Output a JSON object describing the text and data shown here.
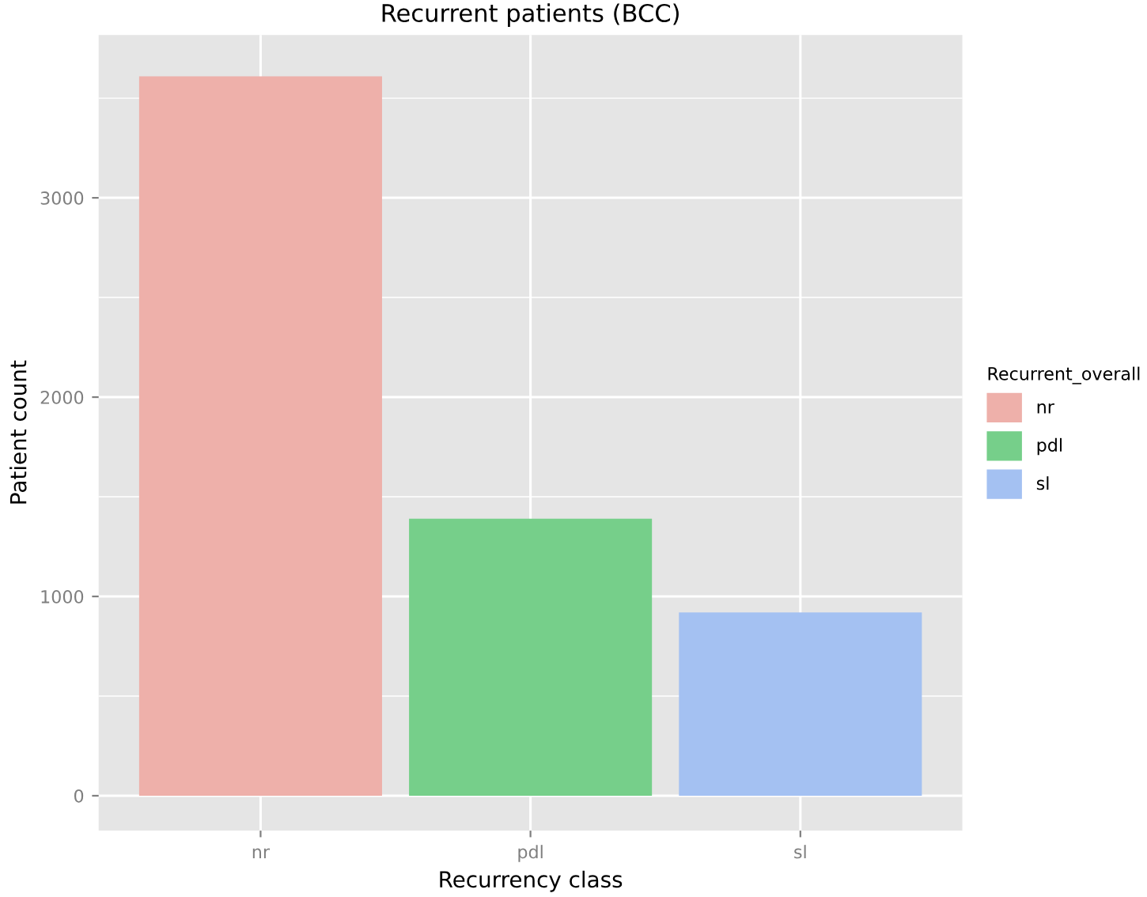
{
  "chart_data": {
    "type": "bar",
    "title": "Recurrent patients (BCC)",
    "xlabel": "Recurrency class",
    "ylabel": "Patient count",
    "categories": [
      "nr",
      "pdl",
      "sl"
    ],
    "series": [
      {
        "name": "nr",
        "color": "#eeb0aa",
        "values": [
          3610,
          null,
          null
        ]
      },
      {
        "name": "pdl",
        "color": "#76cf8a",
        "values": [
          null,
          1390,
          null
        ]
      },
      {
        "name": "sl",
        "color": "#a4c1f2",
        "values": [
          null,
          null,
          920
        ]
      }
    ],
    "ylim": [
      -175,
      3817
    ],
    "yticks": [
      0,
      1000,
      2000,
      3000
    ],
    "grid": true,
    "legend": "right",
    "legend_title": "Recurrent_overall"
  }
}
